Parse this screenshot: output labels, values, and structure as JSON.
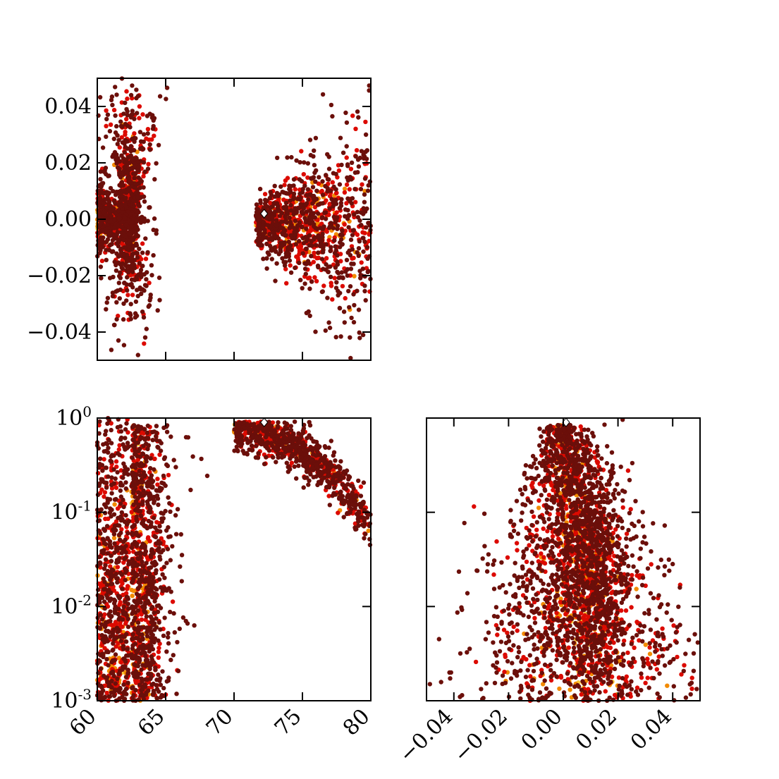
{
  "chart_data": [
    {
      "type": "scatter",
      "panel": "top-left",
      "xlim": [
        60,
        80
      ],
      "ylim": [
        -0.05,
        0.05
      ],
      "xticks": [
        60,
        65,
        70,
        75,
        80
      ],
      "xtick_labels_shown": false,
      "yticks": [
        0.04,
        0.02,
        0.0,
        -0.02,
        -0.04
      ],
      "ytick_labels": [
        "0.04",
        "0.02",
        "0.00",
        "−0.02",
        "−0.04"
      ],
      "best_fit": {
        "x": 72.2,
        "y": 0.002
      },
      "confidence_colors": [
        "#f9c93a",
        "#f28a00",
        "#dc0a00",
        "#6b0f0a"
      ],
      "clusters": [
        {
          "x": 62.4,
          "y": 0.005,
          "sx": 0.3,
          "sy": 0.02
        },
        {
          "x": 60.8,
          "y": 0.0,
          "sx": 1.0,
          "sy": 0.006
        },
        {
          "x": 73.5,
          "y": 0.0,
          "sx": 2.6,
          "sy": 0.004
        }
      ]
    },
    {
      "type": "scatter",
      "panel": "bottom-left",
      "xlim": [
        60,
        80
      ],
      "ylim": [
        0.001,
        1.0
      ],
      "yscale": "log",
      "xticks": [
        60,
        65,
        70,
        75,
        80
      ],
      "xtick_labels": [
        "60",
        "65",
        "70",
        "75",
        "80"
      ],
      "yticks": [
        1.0,
        0.1,
        0.01,
        0.001
      ],
      "ytick_labels": [
        [
          "10",
          "0"
        ],
        [
          "10",
          "-1"
        ],
        [
          "10",
          "-2"
        ],
        [
          "10",
          "-3"
        ]
      ],
      "best_fit": {
        "x": 72.2,
        "y": 0.9
      },
      "confidence_colors": [
        "#f9c93a",
        "#f28a00",
        "#dc0a00",
        "#6b0f0a"
      ],
      "clusters": [
        {
          "x": 62.5,
          "y": 0.05,
          "sx": 0.25
        },
        {
          "x": 61.0,
          "y": 0.003,
          "sx": 0.8
        },
        {
          "x": 73.0,
          "y": 0.7,
          "sx": 1.5
        }
      ]
    },
    {
      "type": "scatter",
      "panel": "bottom-right",
      "xlim": [
        -0.05,
        0.05
      ],
      "ylim": [
        0.001,
        1.0
      ],
      "yscale": "log",
      "xticks": [
        -0.04,
        -0.02,
        0.0,
        0.02,
        0.04
      ],
      "xtick_labels": [
        "−0.04",
        "−0.02",
        "0.00",
        "0.02",
        "0.04"
      ],
      "yticks": [
        1.0,
        0.1,
        0.01,
        0.001
      ],
      "ytick_labels_shown": false,
      "best_fit": {
        "x": 0.001,
        "y": 0.9
      },
      "confidence_colors": [
        "#f9c93a",
        "#f28a00",
        "#dc0a00",
        "#6b0f0a"
      ],
      "clusters": [
        {
          "x": 0.002,
          "y": 0.7,
          "sx": 0.006
        },
        {
          "x": 0.011,
          "y": 0.02,
          "sx": 0.004
        },
        {
          "x": -0.002,
          "y": 0.02,
          "sx": 0.003
        }
      ]
    }
  ]
}
